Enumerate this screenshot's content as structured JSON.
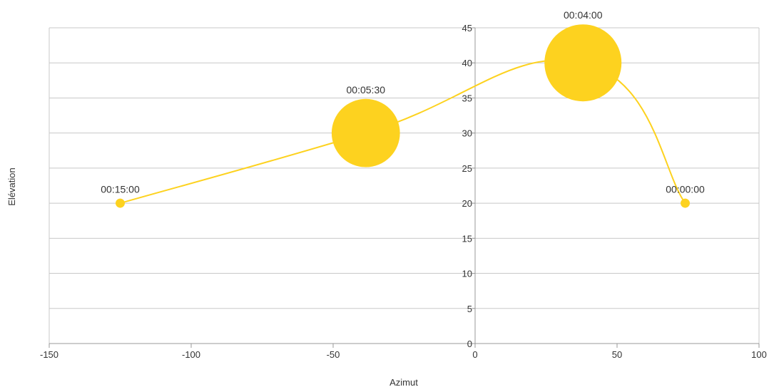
{
  "chart_data": {
    "type": "bubble",
    "title": "",
    "xlabel": "Azimut",
    "ylabel": "Elévation",
    "xlim": [
      -150,
      100
    ],
    "ylim": [
      0,
      45
    ],
    "x_ticks": [
      -150,
      -100,
      -50,
      0,
      50,
      100
    ],
    "y_ticks": [
      0,
      5,
      10,
      15,
      20,
      25,
      30,
      35,
      40,
      45
    ],
    "grid": {
      "horizontal": true,
      "vertical": false
    },
    "legend": "none",
    "smooth_line": true,
    "colors": {
      "series": "#FDD21F",
      "grid": "#C8C8C8",
      "axis": "#999999"
    },
    "points": [
      {
        "x": -125,
        "y": 20,
        "size": 0.1,
        "label": "00:15:00"
      },
      {
        "x": -38.5,
        "y": 30,
        "size": 5.5,
        "label": "00:05:30"
      },
      {
        "x": 38,
        "y": 40,
        "size": 7.0,
        "label": "00:04:00"
      },
      {
        "x": 74,
        "y": 20,
        "size": 0.1,
        "label": "00:00:00"
      }
    ]
  }
}
